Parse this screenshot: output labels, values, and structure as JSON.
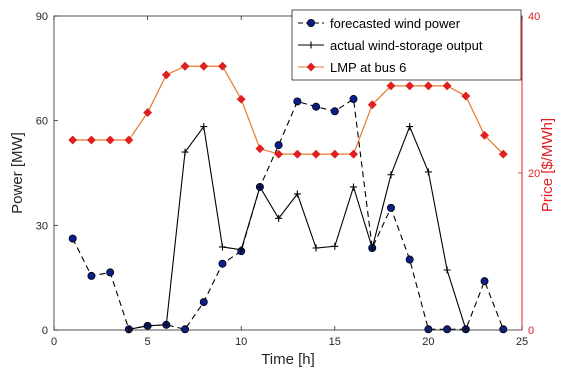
{
  "chart_data": {
    "type": "line",
    "xlabel": "Time [h]",
    "ylabel_left": "Power [MW]",
    "ylabel_right": "Price [$/MWh]",
    "xlim": [
      0,
      25
    ],
    "ylim_left": [
      0,
      90
    ],
    "ylim_right": [
      0,
      40
    ],
    "xticks": [
      "0",
      "5",
      "10",
      "15",
      "20",
      "25"
    ],
    "yticks_left": [
      "0",
      "30",
      "60",
      "90"
    ],
    "yticks_right": [
      "0",
      "20",
      "40"
    ],
    "grid": false,
    "legend_position": "top-right",
    "x": [
      1,
      2,
      3,
      4,
      5,
      6,
      7,
      8,
      9,
      10,
      11,
      12,
      13,
      14,
      15,
      16,
      17,
      18,
      19,
      20,
      21,
      22,
      23,
      24
    ],
    "series": [
      {
        "name": "forecasted wind power",
        "axis": "left",
        "color": "#000000",
        "marker_color": "#0a1e8c",
        "style": "dashed",
        "marker": "circle",
        "values": [
          26.2,
          15.5,
          16.5,
          0.2,
          1.2,
          1.5,
          0.2,
          8.0,
          19.0,
          22.6,
          41.0,
          53.0,
          65.5,
          64.0,
          62.7,
          66.2,
          23.5,
          35.0,
          20.2,
          0.2,
          0.2,
          0.2,
          14.0,
          0.2
        ]
      },
      {
        "name": "actual wind-storage output",
        "axis": "left",
        "color": "#000000",
        "style": "solid",
        "marker": "plus",
        "values": [
          null,
          null,
          null,
          0.2,
          1.2,
          1.5,
          51.0,
          58.3,
          23.8,
          23.0,
          41.0,
          32.0,
          39.0,
          23.5,
          24.0,
          41.0,
          23.5,
          44.5,
          58.3,
          45.3,
          17.2,
          0.2,
          null,
          null
        ]
      },
      {
        "name": "LMP at bus 6",
        "axis": "right",
        "color": "#e8782a",
        "marker_color": "#e02020",
        "style": "solid",
        "marker": "diamond",
        "values": [
          24.2,
          24.2,
          24.2,
          24.2,
          27.7,
          32.5,
          33.6,
          33.6,
          33.6,
          29.4,
          23.1,
          22.4,
          22.4,
          22.4,
          22.4,
          22.4,
          28.7,
          31.1,
          31.1,
          31.1,
          31.1,
          29.8,
          24.8,
          22.4
        ]
      }
    ]
  }
}
